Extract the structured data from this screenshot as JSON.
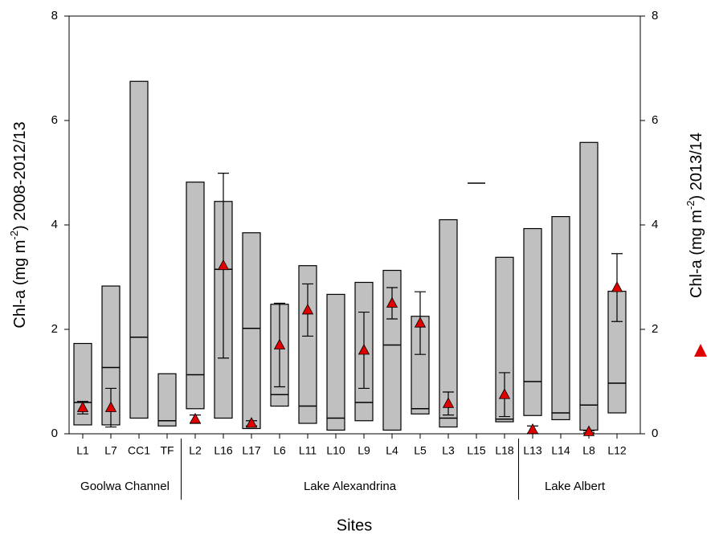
{
  "chart_data": {
    "type": "floating-bar",
    "categories": [
      "L1",
      "L7",
      "CC1",
      "TF",
      "L2",
      "L16",
      "L17",
      "L6",
      "L11",
      "L10",
      "L9",
      "L4",
      "L5",
      "L3",
      "L15",
      "L18",
      "L13",
      "L14",
      "L8",
      "L12"
    ],
    "low": [
      0.17,
      0.17,
      0.3,
      0.15,
      0.48,
      0.3,
      0.1,
      0.53,
      0.2,
      0.07,
      0.25,
      0.07,
      0.38,
      0.13,
      4.8,
      0.23,
      0.35,
      0.27,
      0.07,
      0.4
    ],
    "high": [
      1.73,
      2.83,
      6.75,
      1.15,
      4.82,
      4.45,
      3.85,
      2.48,
      3.22,
      2.67,
      2.9,
      3.13,
      2.25,
      4.1,
      4.8,
      3.38,
      3.93,
      4.16,
      5.58,
      2.73
    ],
    "median": [
      0.6,
      1.27,
      1.85,
      0.25,
      1.13,
      3.15,
      2.02,
      0.75,
      0.53,
      0.3,
      0.6,
      1.7,
      0.48,
      0.3,
      4.8,
      0.28,
      1.0,
      0.4,
      0.55,
      0.97
    ],
    "bar_color": "#c0c0c0",
    "triangles": {
      "color": "#e00000",
      "values": [
        0.5,
        0.5,
        null,
        null,
        0.28,
        3.22,
        0.2,
        1.7,
        2.37,
        null,
        1.6,
        2.5,
        2.12,
        0.58,
        null,
        0.75,
        0.08,
        null,
        0.04,
        2.8
      ],
      "errors": [
        0.12,
        0.37,
        null,
        null,
        0.08,
        1.77,
        0.05,
        0.8,
        0.5,
        null,
        0.73,
        0.3,
        0.6,
        0.22,
        null,
        0.42,
        0.07,
        null,
        0.02,
        0.65
      ]
    },
    "groups": [
      {
        "label": "Goolwa Channel",
        "start": 0,
        "end": 3
      },
      {
        "label": "Lake Alexandrina",
        "start": 4,
        "end": 15
      },
      {
        "label": "Lake Albert",
        "start": 16,
        "end": 19
      }
    ],
    "x_label": "Sites",
    "y_label": [
      "Chl-a (mg m",
      "-2",
      ") 2008-2012/13"
    ],
    "y2_label": [
      "Chl-a (mg m",
      "-2",
      ") 2013/14"
    ],
    "ylim": [
      0,
      8
    ],
    "yticks": [
      0,
      2,
      4,
      6,
      8
    ],
    "y2lim": [
      0,
      8
    ],
    "y2ticks": [
      0,
      2,
      4,
      6,
      8
    ]
  }
}
